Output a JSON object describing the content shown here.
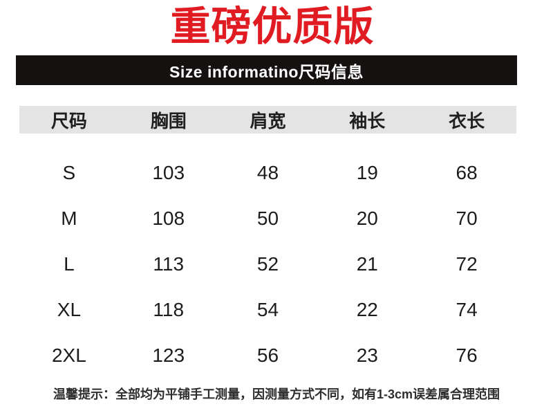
{
  "title": {
    "text": "重磅优质版",
    "color": "#e11b22"
  },
  "banner": {
    "text": "Size informatino尺码信息",
    "background": "#151110",
    "text_color": "#ffffff"
  },
  "size_table": {
    "header_background": "#e5e4e4",
    "columns": [
      "尺码",
      "胸围",
      "肩宽",
      "袖长",
      "衣长"
    ],
    "rows": [
      [
        "S",
        "103",
        "48",
        "19",
        "68"
      ],
      [
        "M",
        "108",
        "50",
        "20",
        "70"
      ],
      [
        "L",
        "113",
        "52",
        "21",
        "72"
      ],
      [
        "XL",
        "118",
        "54",
        "22",
        "74"
      ],
      [
        "2XL",
        "123",
        "56",
        "23",
        "76"
      ]
    ]
  },
  "note": {
    "text": "温馨提示：全部均为平铺手工测量，因测量方式不同，如有1-3cm误差属合理范围"
  }
}
